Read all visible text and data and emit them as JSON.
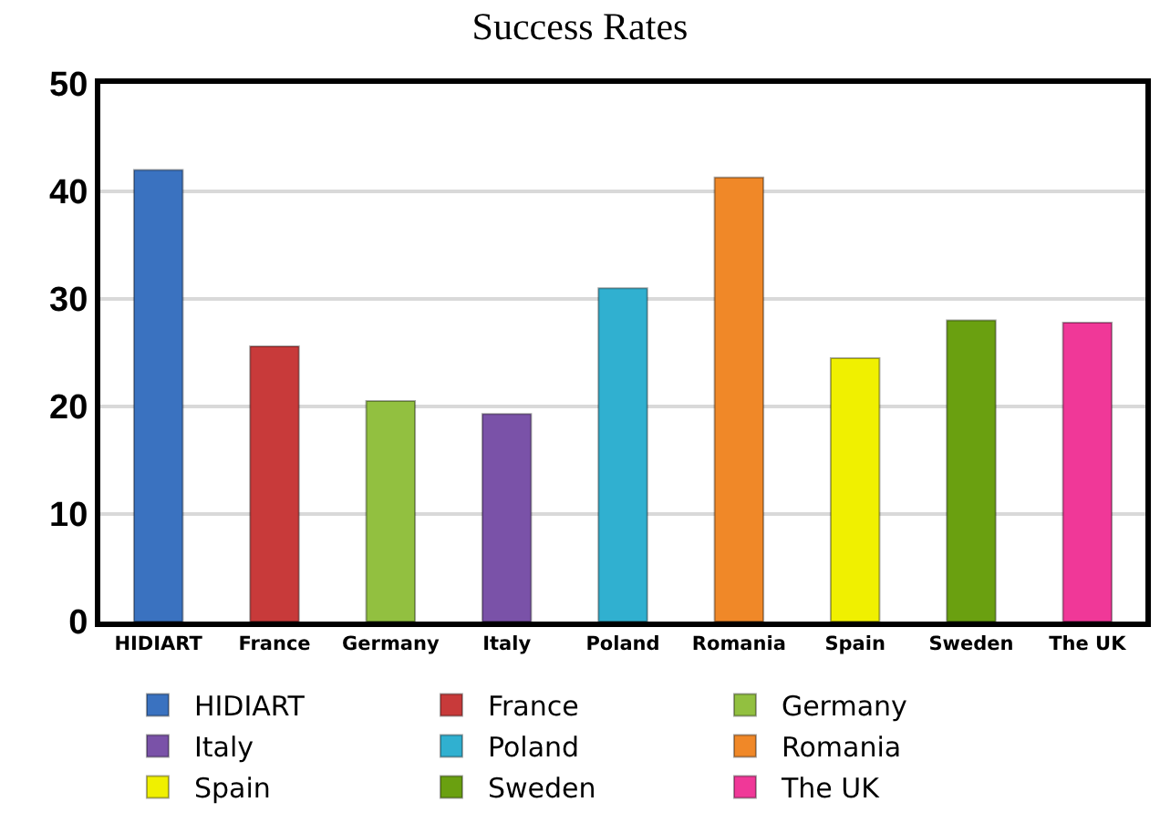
{
  "chart_data": {
    "type": "bar",
    "title": "Success Rates",
    "categories": [
      "HIDIART",
      "France",
      "Germany",
      "Italy",
      "Poland",
      "Romania",
      "Spain",
      "Sweden",
      "The UK"
    ],
    "series": [
      {
        "name": "HIDIART",
        "color": "#3a72c0",
        "values": [
          42.0,
          null,
          null,
          null,
          null,
          null,
          null,
          null,
          null
        ]
      },
      {
        "name": "France",
        "color": "#c83a3a",
        "values": [
          null,
          25.6,
          null,
          null,
          null,
          null,
          null,
          null,
          null
        ]
      },
      {
        "name": "Germany",
        "color": "#92c040",
        "values": [
          null,
          null,
          20.5,
          null,
          null,
          null,
          null,
          null,
          null
        ]
      },
      {
        "name": "Italy",
        "color": "#7a52a8",
        "values": [
          null,
          null,
          null,
          19.3,
          null,
          null,
          null,
          null,
          null
        ]
      },
      {
        "name": "Poland",
        "color": "#30b0d0",
        "values": [
          null,
          null,
          null,
          null,
          31.0,
          null,
          null,
          null,
          null
        ]
      },
      {
        "name": "Romania",
        "color": "#f08828",
        "values": [
          null,
          null,
          null,
          null,
          null,
          41.3,
          null,
          null,
          null
        ]
      },
      {
        "name": "Spain",
        "color": "#f0f000",
        "values": [
          null,
          null,
          null,
          null,
          null,
          null,
          24.5,
          null,
          null
        ]
      },
      {
        "name": "Sweden",
        "color": "#6aa010",
        "values": [
          null,
          null,
          null,
          null,
          null,
          null,
          null,
          28.0,
          null
        ]
      },
      {
        "name": "The UK",
        "color": "#f03898",
        "values": [
          null,
          null,
          null,
          null,
          null,
          null,
          null,
          null,
          27.8
        ]
      }
    ],
    "ylim": [
      0,
      50
    ],
    "yticks": [
      0,
      10,
      20,
      30,
      40,
      50
    ],
    "grid": "y",
    "legend": "bottom"
  }
}
